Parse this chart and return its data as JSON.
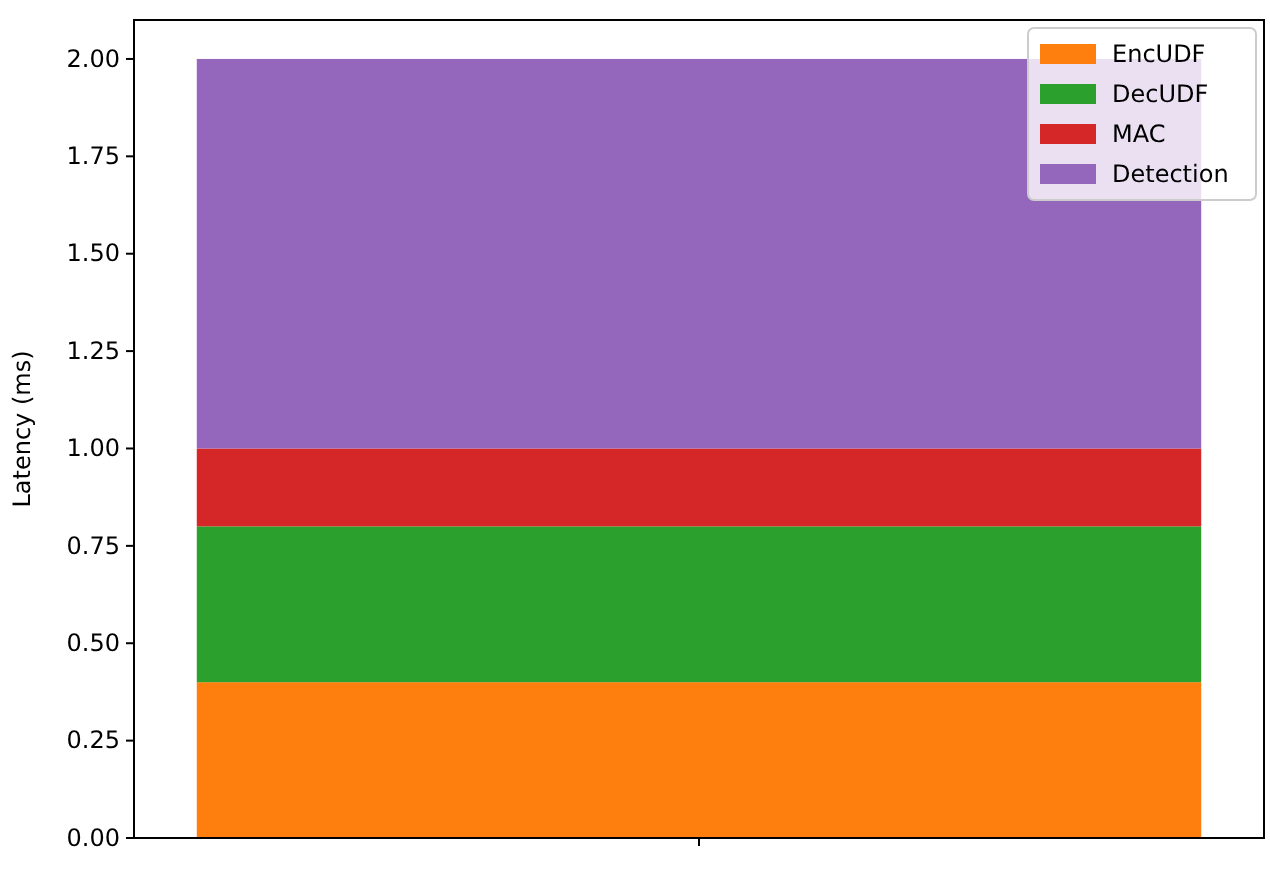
{
  "chart_data": {
    "type": "bar",
    "stacked": true,
    "categories": [
      null
    ],
    "ylabel": "Latency (ms)",
    "ylim": [
      0,
      2.1
    ],
    "yticks": [
      {
        "value": 0,
        "label": "0.00"
      },
      {
        "value": 0.25,
        "label": "0.25"
      },
      {
        "value": 0.5,
        "label": "0.50"
      },
      {
        "value": 0.75,
        "label": "0.75"
      },
      {
        "value": 1,
        "label": "1.00"
      },
      {
        "value": 1.25,
        "label": "1.25"
      },
      {
        "value": 1.5,
        "label": "1.50"
      },
      {
        "value": 1.75,
        "label": "1.75"
      },
      {
        "value": 2,
        "label": "2.00"
      }
    ],
    "legend": "top right",
    "grid": false,
    "series": [
      {
        "name": "EncUDF",
        "color": "#ff7f0e",
        "values": [
          0.4
        ]
      },
      {
        "name": "DecUDF",
        "color": "#2ca02c",
        "values": [
          0.4
        ]
      },
      {
        "name": "MAC",
        "color": "#d62728",
        "values": [
          0.2
        ]
      },
      {
        "name": "Detection",
        "color": "#9467bd",
        "values": [
          1.0
        ]
      }
    ]
  }
}
